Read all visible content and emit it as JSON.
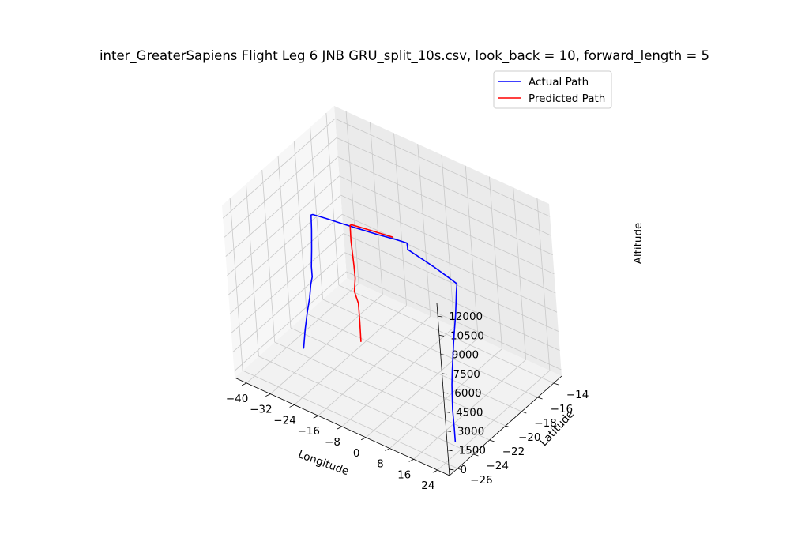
{
  "chart_data": {
    "type": "line",
    "projection": "3d",
    "title": "inter_GreaterSapiens Flight Leg 6 JNB GRU_split_10s.csv, look_back = 10, forward_length = 5",
    "xlabel": "Longitude",
    "ylabel": "Latitude",
    "zlabel": "Altitude",
    "x_ticks": [
      "−40",
      "−32",
      "−24",
      "−16",
      "−8",
      "0",
      "8",
      "16",
      "24"
    ],
    "y_ticks": [
      "−26",
      "−24",
      "−22",
      "−20",
      "−18",
      "−16",
      "−14"
    ],
    "z_ticks": [
      "0",
      "1500",
      "3000",
      "4500",
      "6000",
      "7500",
      "9000",
      "10500",
      "12000"
    ],
    "xlim": [
      -44,
      28
    ],
    "ylim": [
      -27,
      -13
    ],
    "zlim": [
      -500,
      13000
    ],
    "grid": true,
    "legend": "upper right",
    "series": [
      {
        "name": "Actual Path",
        "color": "#0000ff",
        "points": [
          [
            28.2,
            -26.1,
            1700
          ],
          [
            28.2,
            -26.1,
            2800
          ],
          [
            28.1,
            -26.1,
            4200
          ],
          [
            28.0,
            -26.0,
            5200
          ],
          [
            27.9,
            -25.9,
            6000
          ],
          [
            27.5,
            -25.6,
            6900
          ],
          [
            27.0,
            -25.2,
            7900
          ],
          [
            26.6,
            -24.9,
            8600
          ],
          [
            26.4,
            -24.6,
            9500
          ],
          [
            26.2,
            -24.3,
            10400
          ],
          [
            25.8,
            -24.0,
            11200
          ],
          [
            25.0,
            -23.6,
            11700
          ],
          [
            24.5,
            -23.3,
            12100
          ],
          [
            20.0,
            -23.0,
            12100
          ],
          [
            15.0,
            -22.7,
            12100
          ],
          [
            10.0,
            -22.5,
            12150
          ],
          [
            5.0,
            -22.2,
            12100
          ],
          [
            4.5,
            -22.0,
            11900
          ],
          [
            3.8,
            -21.8,
            12250
          ],
          [
            0.0,
            -21.9,
            12200
          ],
          [
            -5.0,
            -22.2,
            12200
          ],
          [
            -10.0,
            -22.5,
            12250
          ],
          [
            -15.0,
            -22.8,
            12300
          ],
          [
            -20.0,
            -23.0,
            12300
          ],
          [
            -24.0,
            -23.2,
            12300
          ],
          [
            -24.6,
            -23.2,
            12200
          ],
          [
            -24.8,
            -23.2,
            11000
          ],
          [
            -25.0,
            -23.3,
            9500
          ],
          [
            -25.2,
            -23.4,
            8200
          ],
          [
            -25.2,
            -23.4,
            7400
          ],
          [
            -25.6,
            -23.5,
            6800
          ],
          [
            -26.0,
            -23.6,
            5800
          ],
          [
            -26.6,
            -23.8,
            4700
          ],
          [
            -27.2,
            -24.0,
            3400
          ],
          [
            -27.6,
            -24.2,
            2000
          ]
        ]
      },
      {
        "name": "Predicted Path",
        "color": "#ff0000",
        "points": [
          [
            -1.0,
            -21.8,
            12200
          ],
          [
            -8.0,
            -22.2,
            12250
          ],
          [
            -12.8,
            -22.5,
            12300
          ],
          [
            -13.4,
            -22.5,
            12200
          ],
          [
            -13.5,
            -22.5,
            11000
          ],
          [
            -13.4,
            -22.4,
            9000
          ],
          [
            -13.3,
            -22.4,
            8000
          ],
          [
            -13.6,
            -22.5,
            7000
          ],
          [
            -13.1,
            -22.3,
            6000
          ],
          [
            -13.1,
            -22.3,
            4600
          ],
          [
            -13.2,
            -22.3,
            3000
          ]
        ]
      }
    ]
  }
}
